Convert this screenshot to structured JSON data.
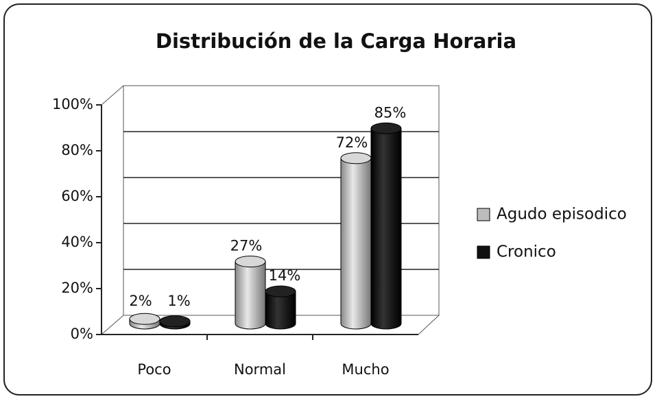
{
  "chart_data": {
    "type": "bar3d",
    "title": "Distribución de la Carga Horaria",
    "categories": [
      "Poco",
      "Normal",
      "Mucho"
    ],
    "series": [
      {
        "name": "Agudo episodico",
        "color": "#bdbdbd",
        "values": [
          2,
          27,
          72
        ],
        "value_labels": [
          "2%",
          "27%",
          "72%"
        ]
      },
      {
        "name": "Cronico",
        "color": "#111111",
        "values": [
          1,
          14,
          85
        ],
        "value_labels": [
          "1%",
          "14%",
          "85%"
        ]
      }
    ],
    "ylim": [
      0,
      100
    ],
    "yticks": [
      {
        "value": 0,
        "label": "0%"
      },
      {
        "value": 20,
        "label": "20%"
      },
      {
        "value": 40,
        "label": "40%"
      },
      {
        "value": 60,
        "label": "60%"
      },
      {
        "value": 80,
        "label": "80%"
      },
      {
        "value": 100,
        "label": "100%"
      }
    ],
    "grid": true,
    "legend": "right"
  }
}
